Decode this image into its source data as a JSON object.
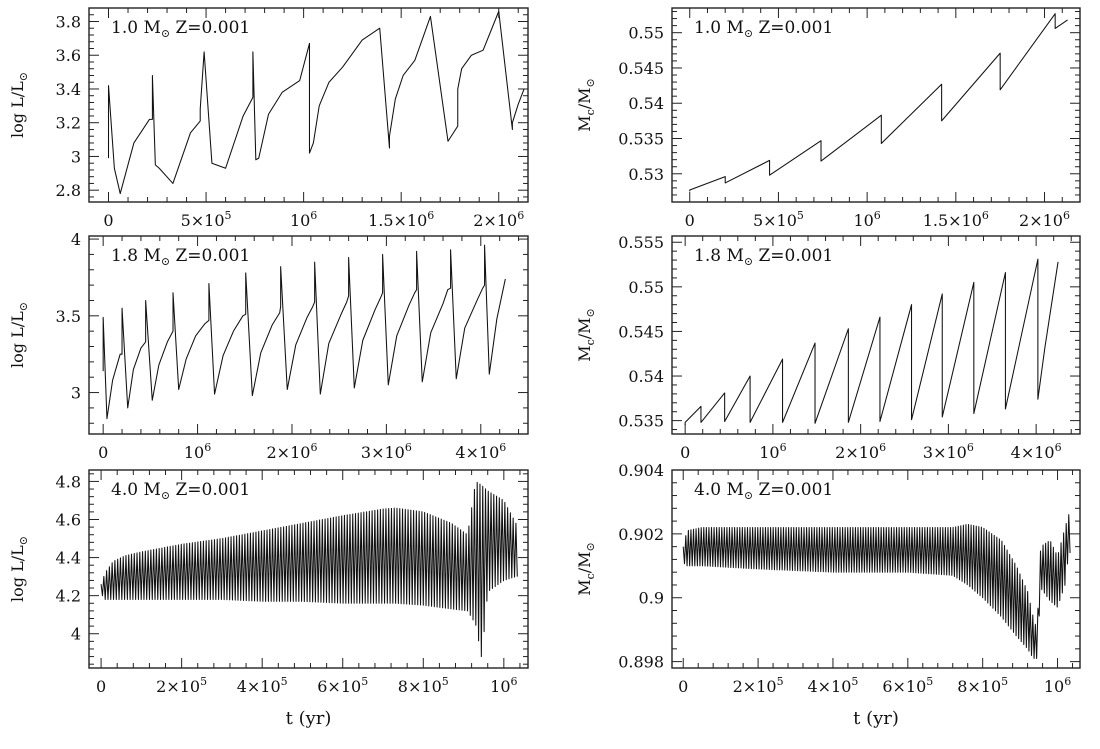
{
  "figure": {
    "xlabel": "t (yr)"
  },
  "chart_data": [
    {
      "type": "line",
      "title": "1.0 M⊙ Z=0.001",
      "ylabel": "log L/L⊙",
      "xlabel": "",
      "xlim": [
        -100000,
        2150000
      ],
      "ylim": [
        2.73,
        3.88
      ],
      "xticks": [
        0,
        500000,
        1000000,
        1500000,
        2000000
      ],
      "xtick_labels": [
        "0",
        "5×10⁵",
        "10⁶",
        "1.5×10⁶",
        "2×10⁶"
      ],
      "yticks": [
        2.8,
        3,
        3.2,
        3.4,
        3.6,
        3.8
      ],
      "ytick_labels": [
        "2.8",
        "3",
        "3.2",
        "3.4",
        "3.6",
        "3.8"
      ],
      "series": [
        {
          "x": [
            0,
            0,
            30000,
            60000,
            130000,
            210000,
            225000,
            225000,
            240000,
            260000,
            330000,
            420000,
            470000,
            470000,
            490000,
            530000,
            600000,
            690000,
            740000,
            740000,
            755000,
            770000,
            820000,
            890000,
            980000,
            1030000,
            1030000,
            1050000,
            1080000,
            1130000,
            1200000,
            1300000,
            1390000,
            1440000,
            1440000,
            1470000,
            1510000,
            1570000,
            1650000,
            1740000,
            1790000,
            1790000,
            1810000,
            1860000,
            1920000,
            2000000,
            2070000,
            2070000,
            2100000,
            2130000
          ],
          "y": [
            2.99,
            3.42,
            2.93,
            2.78,
            3.08,
            3.22,
            3.22,
            3.48,
            2.95,
            2.93,
            2.84,
            3.14,
            3.21,
            3.28,
            3.62,
            2.96,
            2.93,
            3.24,
            3.35,
            3.62,
            2.98,
            2.99,
            3.25,
            3.38,
            3.45,
            3.67,
            3.02,
            3.08,
            3.3,
            3.44,
            3.53,
            3.69,
            3.76,
            3.05,
            3.12,
            3.34,
            3.48,
            3.57,
            3.83,
            3.09,
            3.18,
            3.4,
            3.52,
            3.6,
            3.63,
            3.86,
            3.16,
            3.2,
            3.31,
            3.4
          ]
        }
      ]
    },
    {
      "type": "line",
      "title": "1.0 M⊙ Z=0.001",
      "ylabel": "Mc/M⊙",
      "xlabel": "",
      "xlim": [
        -100000,
        2200000
      ],
      "ylim": [
        0.526,
        0.5535
      ],
      "xticks": [
        0,
        500000,
        1000000,
        1500000,
        2000000
      ],
      "xtick_labels": [
        "0",
        "5×10⁵",
        "10⁶",
        "1.5×10⁶",
        "2×10⁶"
      ],
      "yticks": [
        0.53,
        0.535,
        0.54,
        0.545,
        0.55
      ],
      "ytick_labels": [
        "0.53",
        "0.535",
        "0.54",
        "0.545",
        "0.55"
      ],
      "series": [
        {
          "x": [
            0,
            0,
            200000,
            200000,
            450000,
            450000,
            740000,
            740000,
            1080000,
            1080000,
            1420000,
            1420000,
            1750000,
            1750000,
            2060000,
            2060000,
            2130000
          ],
          "y": [
            0.5275,
            0.5277,
            0.5296,
            0.5287,
            0.5319,
            0.5298,
            0.5347,
            0.5318,
            0.5383,
            0.5343,
            0.5427,
            0.5375,
            0.5471,
            0.5419,
            0.5527,
            0.5506,
            0.5518
          ]
        }
      ]
    },
    {
      "type": "line",
      "title": "1.8 M⊙ Z=0.001",
      "ylabel": "log L/L⊙",
      "xlabel": "",
      "xlim": [
        -150000,
        4500000
      ],
      "ylim": [
        2.73,
        4.02
      ],
      "xticks": [
        0,
        1000000,
        2000000,
        3000000,
        4000000
      ],
      "xtick_labels": [
        "0",
        "10⁶",
        "2×10⁶",
        "3×10⁶",
        "4×10⁶"
      ],
      "yticks": [
        3,
        3.5,
        4
      ],
      "ytick_labels": [
        "3",
        "3.5",
        "4"
      ],
      "series": [
        {
          "x": [
            0,
            0,
            40000,
            100000,
            180000,
            200000,
            200000,
            260000,
            320000,
            400000,
            450000,
            450000,
            520000,
            590000,
            680000,
            740000,
            740000,
            800000,
            880000,
            980000,
            1080000,
            1120000,
            1120000,
            1180000,
            1270000,
            1380000,
            1480000,
            1510000,
            1510000,
            1580000,
            1670000,
            1790000,
            1870000,
            1880000,
            1880000,
            1950000,
            2040000,
            2160000,
            2220000,
            2240000,
            2240000,
            2300000,
            2390000,
            2520000,
            2580000,
            2600000,
            2600000,
            2660000,
            2750000,
            2880000,
            2940000,
            2960000,
            2960000,
            3020000,
            3110000,
            3240000,
            3300000,
            3320000,
            3320000,
            3380000,
            3470000,
            3600000,
            3650000,
            3680000,
            3680000,
            3740000,
            3830000,
            3960000,
            4020000,
            4040000,
            4040000,
            4090000,
            4170000,
            4260000
          ],
          "y": [
            3.14,
            3.49,
            2.83,
            3.08,
            3.25,
            3.25,
            3.55,
            2.9,
            3.15,
            3.29,
            3.33,
            3.6,
            2.95,
            3.18,
            3.33,
            3.4,
            3.65,
            3.02,
            3.22,
            3.37,
            3.45,
            3.47,
            3.71,
            2.99,
            3.24,
            3.4,
            3.5,
            3.51,
            3.78,
            2.98,
            3.26,
            3.44,
            3.52,
            3.56,
            3.82,
            3.02,
            3.31,
            3.49,
            3.56,
            3.59,
            3.85,
            2.99,
            3.32,
            3.51,
            3.59,
            3.63,
            3.88,
            3.03,
            3.34,
            3.54,
            3.62,
            3.65,
            3.9,
            3.05,
            3.37,
            3.57,
            3.65,
            3.67,
            3.92,
            3.07,
            3.39,
            3.58,
            3.67,
            3.68,
            3.93,
            3.09,
            3.42,
            3.6,
            3.68,
            3.7,
            3.96,
            3.12,
            3.48,
            3.74
          ]
        }
      ]
    },
    {
      "type": "line",
      "title": "1.8 M⊙ Z=0.001",
      "ylabel": "Mc/M⊙",
      "xlabel": "",
      "xlim": [
        -150000,
        4500000
      ],
      "ylim": [
        0.5335,
        0.5557
      ],
      "xticks": [
        0,
        1000000,
        2000000,
        3000000,
        4000000
      ],
      "xtick_labels": [
        "0",
        "10⁶",
        "2×10⁶",
        "3×10⁶",
        "4×10⁶"
      ],
      "yticks": [
        0.535,
        0.54,
        0.545,
        0.55,
        0.555
      ],
      "ytick_labels": [
        "0.535",
        "0.54",
        "0.545",
        "0.55",
        "0.555"
      ],
      "series": [
        {
          "x": [
            0,
            0,
            180000,
            180000,
            450000,
            450000,
            740000,
            740000,
            1110000,
            1110000,
            1480000,
            1480000,
            1860000,
            1860000,
            2220000,
            2220000,
            2580000,
            2580000,
            2930000,
            2930000,
            3290000,
            3290000,
            3650000,
            3650000,
            4020000,
            4020000,
            4100000,
            4250000
          ],
          "y": [
            0.5345,
            0.5348,
            0.5366,
            0.5348,
            0.5381,
            0.5349,
            0.54,
            0.5348,
            0.5419,
            0.5348,
            0.5437,
            0.5347,
            0.5453,
            0.5348,
            0.5466,
            0.5349,
            0.548,
            0.5351,
            0.5492,
            0.5354,
            0.5505,
            0.5358,
            0.5516,
            0.5363,
            0.5531,
            0.5374,
            0.5432,
            0.5528
          ]
        }
      ]
    },
    {
      "type": "line",
      "title": "4.0 M⊙ Z=0.001",
      "ylabel": "log L/L⊙",
      "xlabel": "t (yr)",
      "xlim": [
        -30000,
        1060000
      ],
      "ylim": [
        3.82,
        4.86
      ],
      "xticks": [
        0,
        200000,
        400000,
        600000,
        800000,
        1000000
      ],
      "xtick_labels": [
        "0",
        "2×10⁵",
        "4×10⁵",
        "6×10⁵",
        "8×10⁵",
        "10⁶"
      ],
      "yticks": [
        4,
        4.2,
        4.4,
        4.6,
        4.8
      ],
      "ytick_labels": [
        "4",
        "4.2",
        "4.4",
        "4.6",
        "4.8"
      ],
      "series": [
        {
          "name_hidden": "",
          "envelope_x": [
            0,
            10000,
            30000,
            60000,
            100000,
            200000,
            300000,
            400000,
            500000,
            600000,
            700000,
            730000,
            800000,
            870000,
            910000,
            930000,
            945000,
            960000,
            1000000,
            1030000
          ],
          "upper": [
            4.26,
            4.32,
            4.38,
            4.41,
            4.43,
            4.47,
            4.5,
            4.54,
            4.58,
            4.62,
            4.655,
            4.66,
            4.64,
            4.58,
            4.52,
            4.8,
            4.78,
            4.75,
            4.7,
            4.58
          ],
          "lower": [
            4.21,
            4.18,
            4.18,
            4.18,
            4.18,
            4.18,
            4.18,
            4.17,
            4.17,
            4.16,
            4.16,
            4.16,
            4.15,
            4.13,
            4.12,
            4.05,
            3.87,
            4.22,
            4.28,
            4.3
          ],
          "pulses": 150
        }
      ]
    },
    {
      "type": "line",
      "title": "4.0 M⊙ Z=0.001",
      "ylabel": "Mc/M⊙",
      "xlabel": "t (yr)",
      "xlim": [
        -30000,
        1060000
      ],
      "ylim": [
        0.8978,
        0.904
      ],
      "xticks": [
        0,
        200000,
        400000,
        600000,
        800000,
        1000000
      ],
      "xtick_labels": [
        "0",
        "2×10⁵",
        "4×10⁵",
        "6×10⁵",
        "8×10⁵",
        "10⁶"
      ],
      "yticks": [
        0.898,
        0.9,
        0.902,
        0.904
      ],
      "ytick_labels": [
        "0.898",
        "0.9",
        "0.902",
        "0.904"
      ],
      "series": [
        {
          "envelope_x": [
            0,
            10000,
            50000,
            200000,
            400000,
            600000,
            720000,
            760000,
            800000,
            850000,
            890000,
            920000,
            935000,
            945000,
            955000,
            980000,
            1000000,
            1020000,
            1030000
          ],
          "upper": [
            0.9016,
            0.9021,
            0.9022,
            0.9022,
            0.9022,
            0.9022,
            0.9022,
            0.9023,
            0.9022,
            0.9018,
            0.901,
            0.9002,
            0.8994,
            0.899,
            0.9016,
            0.9018,
            0.9013,
            0.9022,
            0.9026
          ],
          "lower": [
            0.9011,
            0.901,
            0.901,
            0.9009,
            0.9008,
            0.9008,
            0.9007,
            0.9004,
            0.9,
            0.8994,
            0.8988,
            0.8984,
            0.8981,
            0.8981,
            0.9003,
            0.8999,
            0.8997,
            0.9004,
            0.9014
          ],
          "pulses": 150
        }
      ]
    }
  ]
}
